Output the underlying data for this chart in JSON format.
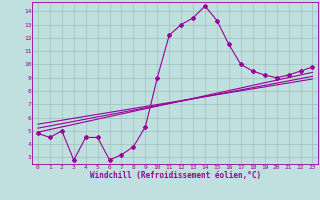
{
  "xlabel": "Windchill (Refroidissement éolien,°C)",
  "bg_color": "#c0e0e0",
  "line_color": "#990099",
  "grid_color": "#9fbfbf",
  "xlim": [
    -0.5,
    23.5
  ],
  "ylim": [
    2.5,
    14.7
  ],
  "xticks": [
    0,
    1,
    2,
    3,
    4,
    5,
    6,
    7,
    8,
    9,
    10,
    11,
    12,
    13,
    14,
    15,
    16,
    17,
    18,
    19,
    20,
    21,
    22,
    23
  ],
  "yticks": [
    3,
    4,
    5,
    6,
    7,
    8,
    9,
    10,
    11,
    12,
    13,
    14
  ],
  "main_x": [
    0,
    1,
    2,
    3,
    4,
    5,
    6,
    7,
    8,
    9,
    10,
    11,
    12,
    13,
    14,
    15,
    16,
    17,
    18,
    19,
    20,
    21,
    22,
    23
  ],
  "main_y": [
    4.8,
    4.5,
    5.0,
    2.8,
    4.5,
    4.5,
    2.8,
    3.2,
    3.8,
    5.3,
    9.0,
    12.2,
    13.0,
    13.5,
    14.4,
    13.3,
    11.5,
    10.0,
    9.5,
    9.2,
    9.0,
    9.2,
    9.5,
    9.8
  ],
  "line1_x": [
    0,
    23
  ],
  "line1_y": [
    5.2,
    9.1
  ],
  "line2_x": [
    0,
    23
  ],
  "line2_y": [
    4.9,
    9.4
  ],
  "line3_x": [
    0,
    23
  ],
  "line3_y": [
    5.5,
    8.9
  ],
  "marker_size": 2.0,
  "line_width": 0.8,
  "tick_fontsize": 4.5,
  "label_fontsize": 5.5
}
